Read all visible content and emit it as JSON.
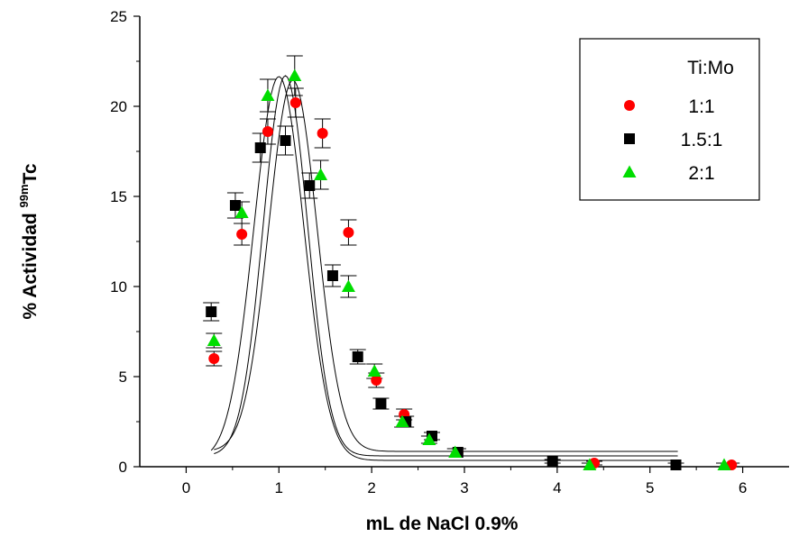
{
  "chart_data": {
    "type": "scatter",
    "xlabel": "mL de NaCl 0.9%",
    "ylabel": {
      "prefix": "% Actividad ",
      "superscript": "99m",
      "suffix": "Tc"
    },
    "xlim": [
      -0.5,
      6.5
    ],
    "ylim": [
      0,
      25
    ],
    "xticks": [
      0,
      1,
      2,
      3,
      4,
      5,
      6
    ],
    "yticks": [
      0,
      5,
      10,
      15,
      20,
      25
    ],
    "grid": false,
    "legend": {
      "title": "Ti:Mo",
      "placement": "top-right"
    },
    "series": [
      {
        "name": "1:1",
        "marker": "circle",
        "color": "#ff0000",
        "x": [
          0.3,
          0.6,
          0.88,
          1.18,
          1.47,
          1.75,
          2.05,
          2.35,
          2.93,
          4.4,
          5.88
        ],
        "y": [
          6.0,
          12.9,
          18.6,
          20.2,
          18.5,
          13.0,
          4.8,
          2.9,
          0.8,
          0.2,
          0.1
        ],
        "err": [
          0.4,
          0.6,
          0.7,
          0.8,
          0.8,
          0.7,
          0.4,
          0.3,
          0.2,
          0.1,
          0.1
        ],
        "fit": {
          "y0": 0.85,
          "A": 20.6,
          "xc": 1.15,
          "w": 0.52,
          "xmax": 5.3
        }
      },
      {
        "name": "1.5:1",
        "marker": "square",
        "color": "#000000",
        "x": [
          0.27,
          0.53,
          0.8,
          1.07,
          1.33,
          1.58,
          1.85,
          2.1,
          2.37,
          2.65,
          2.93,
          3.95,
          5.28
        ],
        "y": [
          8.6,
          14.5,
          17.7,
          18.1,
          15.6,
          10.6,
          6.1,
          3.5,
          2.5,
          1.7,
          0.8,
          0.3,
          0.1
        ],
        "err": [
          0.5,
          0.7,
          0.8,
          0.8,
          0.7,
          0.6,
          0.4,
          0.3,
          0.3,
          0.2,
          0.2,
          0.1,
          0.1
        ],
        "fit": {
          "y0": 0.35,
          "A": 21.3,
          "xc": 1.0,
          "w": 0.54,
          "xmax": 5.3
        }
      },
      {
        "name": "2:1",
        "marker": "triangle",
        "color": "#00dd00",
        "x": [
          0.3,
          0.6,
          0.88,
          1.17,
          1.45,
          1.75,
          2.03,
          2.33,
          2.62,
          2.9,
          4.35,
          5.8
        ],
        "y": [
          7.0,
          14.1,
          20.6,
          21.7,
          16.2,
          10.0,
          5.3,
          2.5,
          1.5,
          0.8,
          0.1,
          0.1
        ],
        "err": [
          0.4,
          0.6,
          0.9,
          1.1,
          0.8,
          0.6,
          0.4,
          0.3,
          0.2,
          0.2,
          0.1,
          0.1
        ],
        "fit": {
          "y0": 0.6,
          "A": 21.1,
          "xc": 1.07,
          "w": 0.48,
          "xmax": 5.3
        }
      }
    ]
  }
}
